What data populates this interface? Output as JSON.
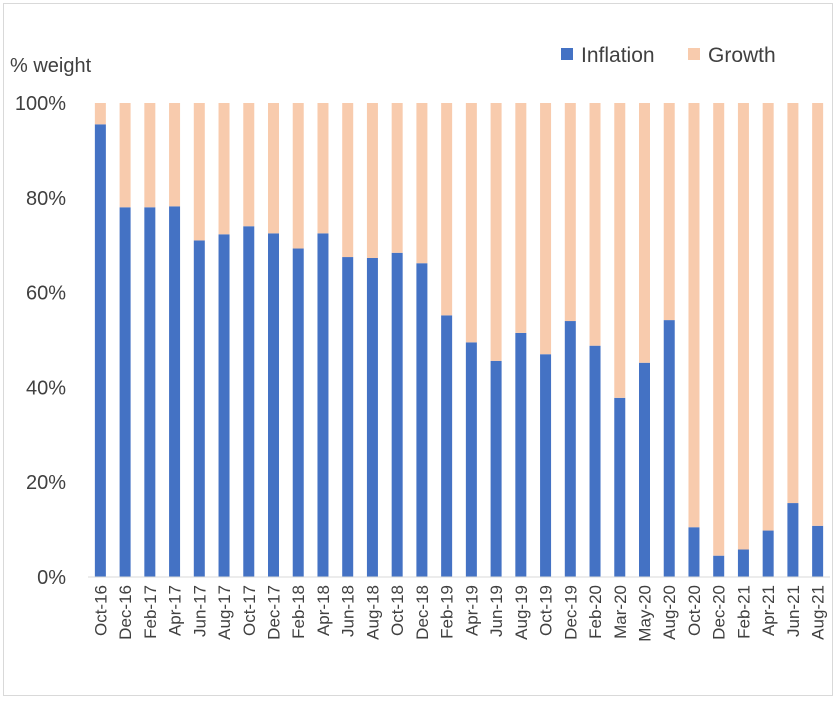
{
  "chart_data": {
    "type": "bar",
    "stacked": true,
    "ylabel": "% weight",
    "ylim": [
      0,
      100
    ],
    "yticks": [
      0,
      20,
      40,
      60,
      80,
      100
    ],
    "ytick_labels": [
      "0%",
      "20%",
      "40%",
      "60%",
      "80%",
      "100%"
    ],
    "legend_position": "top-right",
    "categories": [
      "Oct-16",
      "Dec-16",
      "Feb-17",
      "Apr-17",
      "Jun-17",
      "Aug-17",
      "Oct-17",
      "Dec-17",
      "Feb-18",
      "Apr-18",
      "Jun-18",
      "Aug-18",
      "Oct-18",
      "Dec-18",
      "Feb-19",
      "Apr-19",
      "Jun-19",
      "Aug-19",
      "Oct-19",
      "Dec-19",
      "Feb-20",
      "Mar-20",
      "May-20",
      "Aug-20",
      "Oct-20",
      "Dec-20",
      "Feb-21",
      "Apr-21",
      "Jun-21",
      "Aug-21"
    ],
    "series": [
      {
        "name": "Inflation",
        "color": "#4472c4",
        "values": [
          95.5,
          78,
          78,
          78.2,
          71,
          72.3,
          74,
          72.5,
          69.3,
          72.5,
          67.5,
          67.3,
          68.4,
          66.2,
          55.2,
          49.5,
          45.6,
          51.5,
          47,
          54,
          48.8,
          37.8,
          45.2,
          54.2,
          10.5,
          4.5,
          5.8,
          9.8,
          15.6,
          10.8
        ]
      },
      {
        "name": "Growth",
        "color": "#f8cbad",
        "values": [
          4.5,
          22,
          22,
          21.8,
          29,
          27.7,
          26,
          27.5,
          30.7,
          27.5,
          32.5,
          32.7,
          31.6,
          33.8,
          44.8,
          50.5,
          54.4,
          48.5,
          53,
          46,
          51.2,
          62.2,
          54.8,
          45.8,
          89.5,
          95.5,
          94.2,
          90.2,
          84.4,
          89.2
        ]
      }
    ]
  }
}
